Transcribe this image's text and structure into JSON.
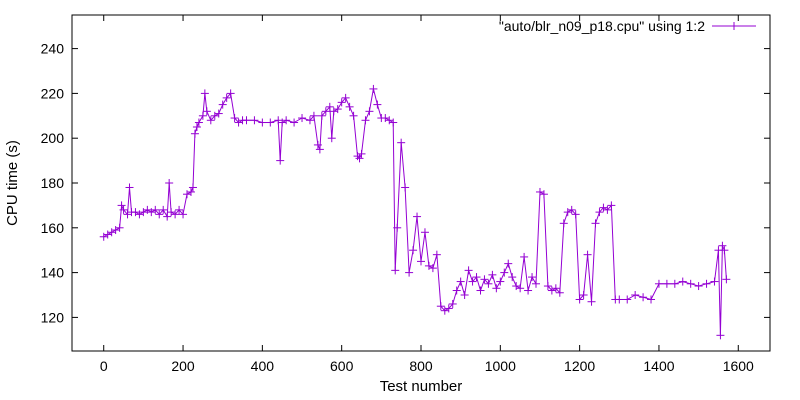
{
  "chart_data": {
    "type": "line",
    "xlabel": "Test number",
    "ylabel": "CPU time (s)",
    "xlim": [
      -80,
      1680
    ],
    "ylim": [
      105,
      255
    ],
    "xticks": [
      0,
      200,
      400,
      600,
      800,
      1000,
      1200,
      1400,
      1600
    ],
    "yticks": [
      120,
      140,
      160,
      180,
      200,
      220,
      240
    ],
    "grid": false,
    "legend_position": "top-right",
    "point_marker": "plus",
    "series": [
      {
        "name": "\"auto/blr_n09_p18.cpu\" using 1:2",
        "color": "#9400d3",
        "x": [
          0,
          10,
          20,
          30,
          40,
          45,
          50,
          60,
          65,
          70,
          80,
          90,
          100,
          110,
          120,
          130,
          140,
          150,
          160,
          165,
          170,
          180,
          190,
          200,
          210,
          220,
          225,
          230,
          235,
          240,
          250,
          255,
          260,
          270,
          280,
          290,
          300,
          310,
          320,
          330,
          340,
          350,
          360,
          380,
          400,
          420,
          440,
          445,
          450,
          460,
          480,
          500,
          520,
          530,
          540,
          545,
          550,
          560,
          570,
          575,
          580,
          590,
          600,
          610,
          620,
          630,
          640,
          645,
          650,
          660,
          670,
          680,
          690,
          700,
          710,
          720,
          730,
          735,
          740,
          750,
          760,
          770,
          780,
          790,
          800,
          810,
          820,
          830,
          840,
          850,
          860,
          870,
          880,
          890,
          900,
          910,
          920,
          930,
          940,
          950,
          960,
          970,
          980,
          990,
          1000,
          1010,
          1020,
          1030,
          1040,
          1050,
          1060,
          1070,
          1080,
          1090,
          1100,
          1110,
          1120,
          1130,
          1140,
          1150,
          1160,
          1170,
          1180,
          1190,
          1200,
          1210,
          1220,
          1230,
          1240,
          1250,
          1260,
          1270,
          1280,
          1290,
          1300,
          1320,
          1340,
          1360,
          1380,
          1400,
          1420,
          1440,
          1460,
          1480,
          1500,
          1520,
          1540,
          1550,
          1555,
          1560,
          1565,
          1570
        ],
        "y": [
          156,
          157,
          158,
          159,
          160,
          170,
          168,
          166,
          178,
          167,
          167,
          166,
          167,
          168,
          167,
          168,
          166,
          168,
          165,
          180,
          167,
          166,
          168,
          166,
          175,
          176,
          178,
          202,
          205,
          207,
          210,
          220,
          212,
          208,
          210,
          211,
          215,
          218,
          220,
          209,
          207,
          208,
          208,
          208,
          207,
          207,
          208,
          190,
          207,
          208,
          207,
          209,
          208,
          210,
          197,
          195,
          210,
          212,
          214,
          200,
          212,
          213,
          216,
          218,
          214,
          210,
          192,
          191,
          193,
          208,
          212,
          222,
          215,
          209,
          209,
          208,
          207,
          141,
          160,
          198,
          178,
          140,
          150,
          165,
          145,
          158,
          143,
          142,
          148,
          125,
          123,
          124,
          126,
          132,
          136,
          130,
          141,
          136,
          138,
          132,
          137,
          135,
          139,
          133,
          136,
          140,
          144,
          138,
          134,
          133,
          147,
          132,
          138,
          135,
          176,
          175,
          134,
          132,
          133,
          131,
          162,
          167,
          168,
          166,
          128,
          130,
          148,
          127,
          162,
          167,
          169,
          168,
          170,
          128,
          128,
          128,
          130,
          129,
          128,
          135,
          135,
          135,
          136,
          135,
          134,
          135,
          136,
          150,
          112,
          152,
          150,
          137
        ]
      }
    ]
  }
}
